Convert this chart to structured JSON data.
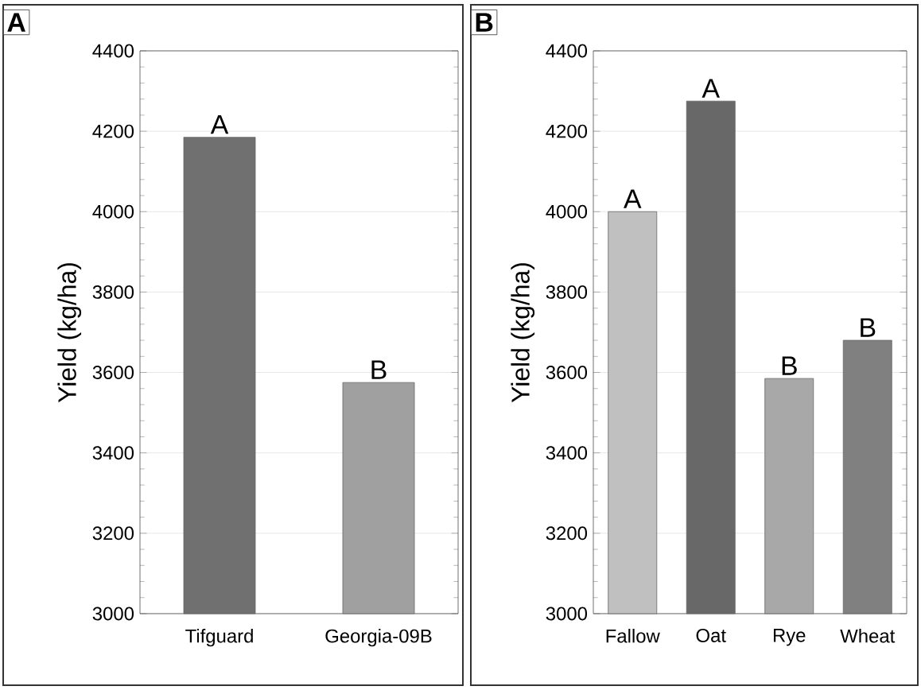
{
  "chart_data": [
    {
      "type": "bar",
      "title": "A",
      "ylabel": "Yield (kg/ha)",
      "categories": [
        "Tifguard",
        "Georgia-09B"
      ],
      "values": [
        4185,
        3575
      ],
      "colors": [
        "#707070",
        "#a0a0a0"
      ],
      "value_labels": [
        "A",
        "B"
      ],
      "ylim": [
        3000,
        4400
      ],
      "yticks": [
        3000,
        3200,
        3400,
        3600,
        3800,
        4000,
        4200,
        4400
      ],
      "grid": "y"
    },
    {
      "type": "bar",
      "title": "B",
      "ylabel": "Yield (kg/ha)",
      "categories": [
        "Fallow",
        "Oat",
        "Rye",
        "Wheat"
      ],
      "values": [
        4000,
        4275,
        3585,
        3680
      ],
      "colors": [
        "#c0c0c0",
        "#686868",
        "#a8a8a8",
        "#808080"
      ],
      "value_labels": [
        "A",
        "A",
        "B",
        "B"
      ],
      "ylim": [
        3000,
        4400
      ],
      "yticks": [
        3000,
        3200,
        3400,
        3600,
        3800,
        4000,
        4200,
        4400
      ],
      "grid": "y"
    }
  ]
}
